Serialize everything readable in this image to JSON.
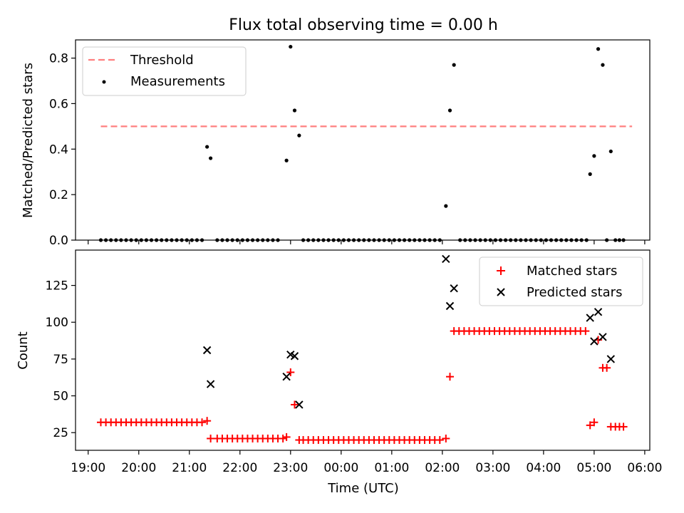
{
  "chart_data": [
    {
      "type": "scatter",
      "title": "Flux total observing time = 0.00 h",
      "xlabel": "",
      "ylabel": "Matched/Predicted stars",
      "ylim": [
        0,
        0.88
      ],
      "yticks": [
        0.0,
        0.2,
        0.4,
        0.6,
        0.8
      ],
      "ytick_labels": [
        "0.0",
        "0.2",
        "0.4",
        "0.6",
        "0.8"
      ],
      "x_unit": "hours since 19:00 UTC",
      "threshold": {
        "name": "Threshold",
        "value": 0.5,
        "x_range": [
          0.25,
          10.75
        ],
        "color": "#ff7f7f"
      },
      "legend": {
        "placement": "upper-left",
        "entries": [
          "Threshold",
          "Measurements"
        ]
      },
      "series": [
        {
          "name": "Measurements",
          "marker": "dot",
          "color": "#000000",
          "points": [
            [
              0.25,
              0
            ],
            [
              0.35,
              0
            ],
            [
              0.45,
              0
            ],
            [
              0.55,
              0
            ],
            [
              0.65,
              0
            ],
            [
              0.75,
              0
            ],
            [
              0.85,
              0
            ],
            [
              0.95,
              0
            ],
            [
              1.05,
              0
            ],
            [
              1.15,
              0
            ],
            [
              1.25,
              0
            ],
            [
              1.35,
              0
            ],
            [
              1.45,
              0
            ],
            [
              1.55,
              0
            ],
            [
              1.65,
              0
            ],
            [
              1.75,
              0
            ],
            [
              1.85,
              0
            ],
            [
              1.95,
              0
            ],
            [
              2.05,
              0
            ],
            [
              2.15,
              0
            ],
            [
              2.25,
              0
            ],
            [
              2.35,
              0.41
            ],
            [
              2.42,
              0.36
            ],
            [
              2.55,
              0
            ],
            [
              2.65,
              0
            ],
            [
              2.75,
              0
            ],
            [
              2.85,
              0
            ],
            [
              2.95,
              0
            ],
            [
              3.05,
              0
            ],
            [
              3.15,
              0
            ],
            [
              3.25,
              0
            ],
            [
              3.35,
              0
            ],
            [
              3.45,
              0
            ],
            [
              3.55,
              0
            ],
            [
              3.65,
              0
            ],
            [
              3.75,
              0
            ],
            [
              3.92,
              0.35
            ],
            [
              4.0,
              0.85
            ],
            [
              4.08,
              0.57
            ],
            [
              4.17,
              0.46
            ],
            [
              4.25,
              0
            ],
            [
              4.35,
              0
            ],
            [
              4.45,
              0
            ],
            [
              4.55,
              0
            ],
            [
              4.65,
              0
            ],
            [
              4.75,
              0
            ],
            [
              4.85,
              0
            ],
            [
              4.95,
              0
            ],
            [
              5.05,
              0
            ],
            [
              5.15,
              0
            ],
            [
              5.25,
              0
            ],
            [
              5.35,
              0
            ],
            [
              5.45,
              0
            ],
            [
              5.55,
              0
            ],
            [
              5.65,
              0
            ],
            [
              5.75,
              0
            ],
            [
              5.85,
              0
            ],
            [
              5.95,
              0
            ],
            [
              6.05,
              0
            ],
            [
              6.15,
              0
            ],
            [
              6.25,
              0
            ],
            [
              6.35,
              0
            ],
            [
              6.45,
              0
            ],
            [
              6.55,
              0
            ],
            [
              6.65,
              0
            ],
            [
              6.75,
              0
            ],
            [
              6.85,
              0
            ],
            [
              6.95,
              0
            ],
            [
              7.07,
              0.15
            ],
            [
              7.15,
              0.57
            ],
            [
              7.23,
              0.77
            ],
            [
              7.35,
              0
            ],
            [
              7.45,
              0
            ],
            [
              7.55,
              0
            ],
            [
              7.65,
              0
            ],
            [
              7.75,
              0
            ],
            [
              7.85,
              0
            ],
            [
              7.95,
              0
            ],
            [
              8.05,
              0
            ],
            [
              8.15,
              0
            ],
            [
              8.25,
              0
            ],
            [
              8.35,
              0
            ],
            [
              8.45,
              0
            ],
            [
              8.55,
              0
            ],
            [
              8.65,
              0
            ],
            [
              8.75,
              0
            ],
            [
              8.85,
              0
            ],
            [
              8.95,
              0
            ],
            [
              9.05,
              0
            ],
            [
              9.15,
              0
            ],
            [
              9.25,
              0
            ],
            [
              9.35,
              0
            ],
            [
              9.45,
              0
            ],
            [
              9.55,
              0
            ],
            [
              9.65,
              0
            ],
            [
              9.75,
              0
            ],
            [
              9.85,
              0
            ],
            [
              9.92,
              0.29
            ],
            [
              10.0,
              0.37
            ],
            [
              10.08,
              0.84
            ],
            [
              10.17,
              0.77
            ],
            [
              10.25,
              0
            ],
            [
              10.33,
              0.39
            ],
            [
              10.42,
              0
            ],
            [
              10.5,
              0
            ],
            [
              10.58,
              0
            ]
          ]
        }
      ]
    },
    {
      "type": "scatter",
      "title": "",
      "xlabel": "Time (UTC)",
      "ylabel": "Count",
      "ylim": [
        13,
        149
      ],
      "yticks": [
        25,
        50,
        75,
        100,
        125
      ],
      "ytick_labels": [
        "25",
        "50",
        "75",
        "100",
        "125"
      ],
      "x_unit": "hours since 19:00 UTC",
      "xlim": [
        -0.25,
        11.1
      ],
      "xticks": [
        0,
        1,
        2,
        3,
        4,
        5,
        6,
        7,
        8,
        9,
        10,
        11
      ],
      "xtick_labels": [
        "19:00",
        "20:00",
        "21:00",
        "22:00",
        "23:00",
        "00:00",
        "01:00",
        "02:00",
        "03:00",
        "04:00",
        "05:00",
        "06:00"
      ],
      "legend": {
        "placement": "upper-right",
        "entries": [
          "Matched stars",
          "Predicted stars"
        ]
      },
      "series": [
        {
          "name": "Matched stars",
          "marker": "plus",
          "color": "#ff0000",
          "points": [
            [
              0.25,
              32
            ],
            [
              0.35,
              32
            ],
            [
              0.45,
              32
            ],
            [
              0.55,
              32
            ],
            [
              0.65,
              32
            ],
            [
              0.75,
              32
            ],
            [
              0.85,
              32
            ],
            [
              0.95,
              32
            ],
            [
              1.05,
              32
            ],
            [
              1.15,
              32
            ],
            [
              1.25,
              32
            ],
            [
              1.35,
              32
            ],
            [
              1.45,
              32
            ],
            [
              1.55,
              32
            ],
            [
              1.65,
              32
            ],
            [
              1.75,
              32
            ],
            [
              1.85,
              32
            ],
            [
              1.95,
              32
            ],
            [
              2.05,
              32
            ],
            [
              2.15,
              32
            ],
            [
              2.25,
              32
            ],
            [
              2.35,
              33
            ],
            [
              2.42,
              21
            ],
            [
              2.55,
              21
            ],
            [
              2.65,
              21
            ],
            [
              2.75,
              21
            ],
            [
              2.85,
              21
            ],
            [
              2.95,
              21
            ],
            [
              3.05,
              21
            ],
            [
              3.15,
              21
            ],
            [
              3.25,
              21
            ],
            [
              3.35,
              21
            ],
            [
              3.45,
              21
            ],
            [
              3.55,
              21
            ],
            [
              3.65,
              21
            ],
            [
              3.75,
              21
            ],
            [
              3.85,
              21
            ],
            [
              3.92,
              22
            ],
            [
              4.0,
              66
            ],
            [
              4.08,
              44
            ],
            [
              4.17,
              20
            ],
            [
              4.25,
              20
            ],
            [
              4.35,
              20
            ],
            [
              4.45,
              20
            ],
            [
              4.55,
              20
            ],
            [
              4.65,
              20
            ],
            [
              4.75,
              20
            ],
            [
              4.85,
              20
            ],
            [
              4.95,
              20
            ],
            [
              5.05,
              20
            ],
            [
              5.15,
              20
            ],
            [
              5.25,
              20
            ],
            [
              5.35,
              20
            ],
            [
              5.45,
              20
            ],
            [
              5.55,
              20
            ],
            [
              5.65,
              20
            ],
            [
              5.75,
              20
            ],
            [
              5.85,
              20
            ],
            [
              5.95,
              20
            ],
            [
              6.05,
              20
            ],
            [
              6.15,
              20
            ],
            [
              6.25,
              20
            ],
            [
              6.35,
              20
            ],
            [
              6.45,
              20
            ],
            [
              6.55,
              20
            ],
            [
              6.65,
              20
            ],
            [
              6.75,
              20
            ],
            [
              6.85,
              20
            ],
            [
              6.95,
              20
            ],
            [
              7.07,
              21
            ],
            [
              7.15,
              63
            ],
            [
              7.23,
              94
            ],
            [
              7.33,
              94
            ],
            [
              7.43,
              94
            ],
            [
              7.53,
              94
            ],
            [
              7.63,
              94
            ],
            [
              7.73,
              94
            ],
            [
              7.83,
              94
            ],
            [
              7.93,
              94
            ],
            [
              8.03,
              94
            ],
            [
              8.13,
              94
            ],
            [
              8.23,
              94
            ],
            [
              8.33,
              94
            ],
            [
              8.43,
              94
            ],
            [
              8.53,
              94
            ],
            [
              8.63,
              94
            ],
            [
              8.73,
              94
            ],
            [
              8.83,
              94
            ],
            [
              8.93,
              94
            ],
            [
              9.03,
              94
            ],
            [
              9.13,
              94
            ],
            [
              9.23,
              94
            ],
            [
              9.33,
              94
            ],
            [
              9.43,
              94
            ],
            [
              9.53,
              94
            ],
            [
              9.63,
              94
            ],
            [
              9.73,
              94
            ],
            [
              9.83,
              94
            ],
            [
              9.92,
              30
            ],
            [
              10.0,
              32
            ],
            [
              10.08,
              88
            ],
            [
              10.17,
              69
            ],
            [
              10.25,
              69
            ],
            [
              10.33,
              29
            ],
            [
              10.42,
              29
            ],
            [
              10.5,
              29
            ],
            [
              10.58,
              29
            ]
          ]
        },
        {
          "name": "Predicted stars",
          "marker": "x",
          "color": "#000000",
          "points": [
            [
              2.35,
              81
            ],
            [
              2.42,
              58
            ],
            [
              3.92,
              63
            ],
            [
              4.0,
              78
            ],
            [
              4.08,
              77
            ],
            [
              4.17,
              44
            ],
            [
              7.07,
              143
            ],
            [
              7.15,
              111
            ],
            [
              7.23,
              123
            ],
            [
              9.92,
              103
            ],
            [
              10.0,
              87
            ],
            [
              10.08,
              107
            ],
            [
              10.17,
              90
            ],
            [
              10.33,
              75
            ]
          ]
        }
      ]
    }
  ]
}
